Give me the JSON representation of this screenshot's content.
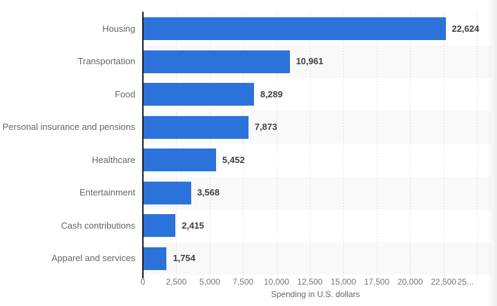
{
  "chart_data": {
    "type": "bar",
    "orientation": "horizontal",
    "title": "",
    "categories": [
      "Housing",
      "Transportation",
      "Food",
      "Personal insurance and pensions",
      "Healthcare",
      "Entertainment",
      "Cash contributions",
      "Apparel and services"
    ],
    "values": [
      22624,
      10961,
      8289,
      7873,
      5452,
      3568,
      2415,
      1754
    ],
    "value_labels": [
      "22,624",
      "10,961",
      "8,289",
      "7,873",
      "5,452",
      "3,568",
      "2,415",
      "1,754"
    ],
    "xlabel": "Spending in U.S. dollars",
    "ylabel": "",
    "xlim": [
      0,
      25000
    ],
    "x_ticks": [
      {
        "value": 0,
        "label": "0"
      },
      {
        "value": 2500,
        "label": "2,500"
      },
      {
        "value": 5000,
        "label": "5,000"
      },
      {
        "value": 7500,
        "label": "7,500"
      },
      {
        "value": 10000,
        "label": "10,000"
      },
      {
        "value": 12500,
        "label": "12,500"
      },
      {
        "value": 15000,
        "label": "15,000"
      },
      {
        "value": 17500,
        "label": "17,500"
      },
      {
        "value": 20000,
        "label": "20,000"
      },
      {
        "value": 22500,
        "label": "22,500"
      },
      {
        "value": 25000,
        "label": "25..."
      }
    ],
    "grid": "vertical-dotted",
    "legend": "none",
    "colors": {
      "bar": "#2b73da",
      "row_band_alt": "#f9f9f9",
      "gridline": "#cccccc",
      "axis_line": "#1a1a1a",
      "category_label": "#666666",
      "value_label": "#404040",
      "tick_label": "#737373",
      "axis_title": "#666666",
      "background": "#ffffff"
    }
  }
}
